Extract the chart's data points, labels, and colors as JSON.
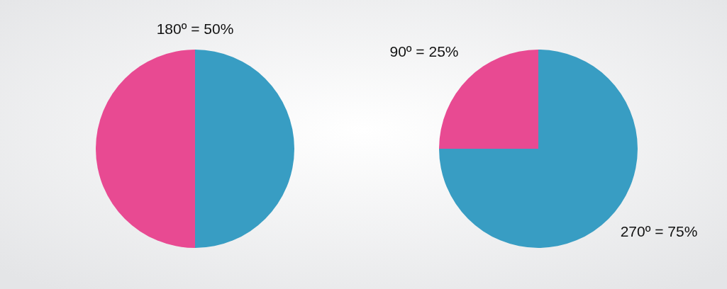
{
  "chart_data": [
    {
      "type": "pie",
      "categories": [
        null,
        null
      ],
      "values": [
        50,
        50
      ],
      "colors": [
        "#389dc3",
        "#e84a92"
      ],
      "annotations": [
        "180º = 50%"
      ]
    },
    {
      "type": "pie",
      "categories": [
        null,
        null
      ],
      "values": [
        75,
        25
      ],
      "colors": [
        "#389dc3",
        "#e84a92"
      ],
      "annotations": [
        "90º = 25%",
        "270º = 75%"
      ]
    }
  ]
}
